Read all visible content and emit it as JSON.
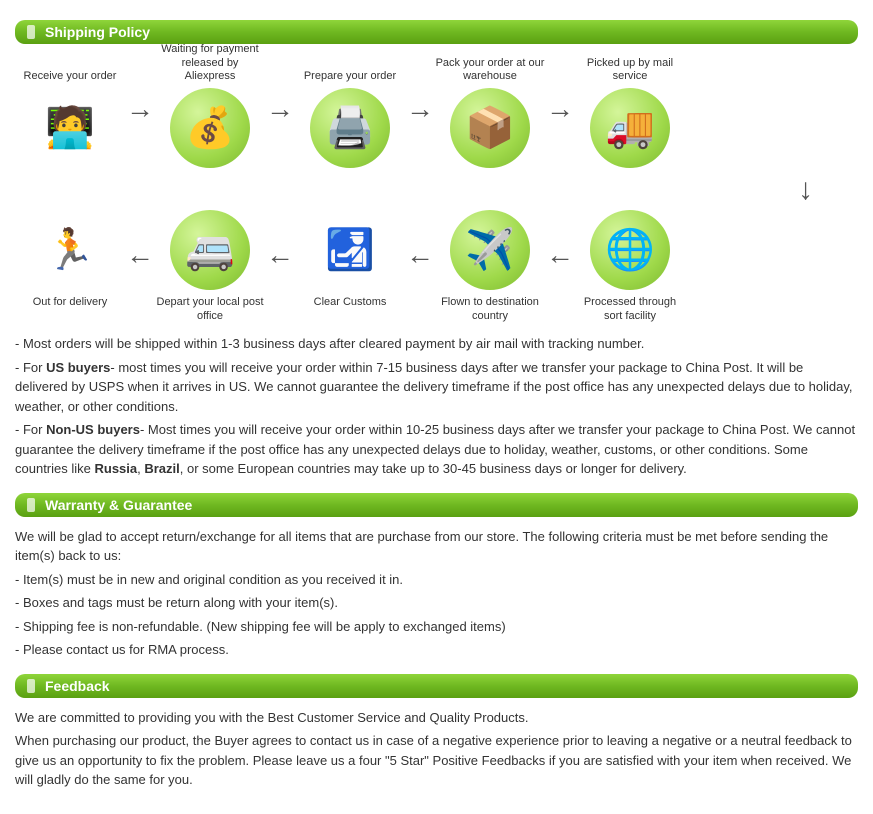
{
  "colors": {
    "header_gradient_top": "#8fd53a",
    "header_gradient_mid": "#6fb821",
    "header_gradient_bot": "#5aa011",
    "header_text": "#ffffff",
    "arrow": "#555555",
    "body_text": "#333333",
    "icon_bg_outer": "#7bb82e",
    "icon_bg_inner": "#d4f59a"
  },
  "headers": {
    "shipping": "Shipping Policy",
    "warranty": "Warranty & Guarantee",
    "feedback": "Feedback"
  },
  "steps_top": [
    {
      "label": "Receive your order",
      "glyph": "🧑‍💻"
    },
    {
      "label": "Waiting for payment released by Aliexpress",
      "glyph": "💰"
    },
    {
      "label": "Prepare your order",
      "glyph": "🖨️"
    },
    {
      "label": "Pack your order at our warehouse",
      "glyph": "📦"
    },
    {
      "label": "Picked up by mail service",
      "glyph": "🚚"
    }
  ],
  "steps_bottom": [
    {
      "label": "Out for delivery",
      "glyph": "🏃"
    },
    {
      "label": "Depart your local post office",
      "glyph": "🚐"
    },
    {
      "label": "Clear Customs",
      "glyph": "🛃"
    },
    {
      "label": "Flown to destination country",
      "glyph": "✈️"
    },
    {
      "label": "Processed through sort facility",
      "glyph": "🌐"
    }
  ],
  "arrows": {
    "right": "→",
    "left": "←",
    "down": "↓"
  },
  "shipping_text": {
    "line1": "- Most orders will be shipped within 1-3 business days after cleared payment by air mail with tracking number.",
    "line2a": "- For ",
    "line2b": "US buyers",
    "line2c": "- most times you will receive your order within 7-15 business days after we transfer your package to China Post. It will be delivered by USPS when it arrives in US. We cannot guarantee the delivery timeframe if the post office has any unexpected delays due to holiday, weather, or other conditions.",
    "line3a": "- For ",
    "line3b": "Non-US buyers",
    "line3c": "- Most times you will receive your order within 10-25 business days after we transfer your package to China Post. We cannot guarantee the delivery timeframe if the post office has any unexpected delays due to holiday, weather, customs, or other conditions. Some countries like ",
    "line3d": "Russia",
    "line3e": ", ",
    "line3f": "Brazil",
    "line3g": ", or some European countries may take up to 30-45 business days or longer for delivery."
  },
  "warranty_text": {
    "l1": "We will be glad to accept return/exchange for all items that are purchase from our store. The following criteria must be met before sending the item(s) back to us:",
    "l2": "- Item(s) must be in new and original condition as you received it in.",
    "l3": "- Boxes and tags must be return along with your item(s).",
    "l4": "- Shipping fee is non-refundable. (New shipping fee will be apply to exchanged items)",
    "l5": "- Please contact us for RMA process."
  },
  "feedback_text": {
    "l1": "We are committed to providing you with the Best Customer Service and Quality Products.",
    "l2": "When purchasing our product, the Buyer agrees to contact us in case of a negative experience prior to leaving a negative or a neutral feedback to give us an opportunity to fix the problem. Please leave us a four \"5 Star\" Positive Feedbacks if you are satisfied with your item when received. We will gladly do the same for you."
  }
}
